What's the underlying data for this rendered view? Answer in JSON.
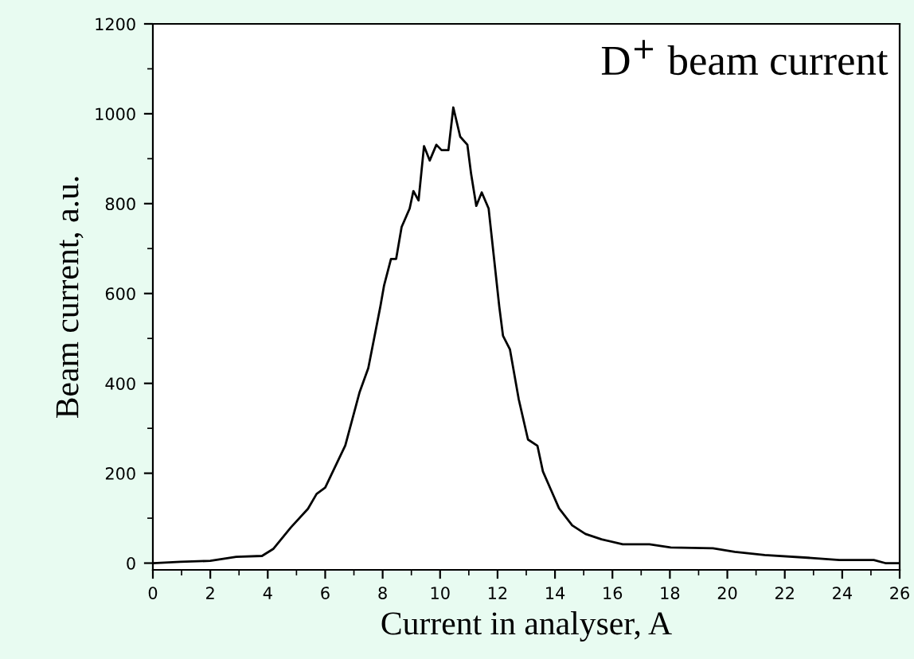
{
  "chart_data": {
    "type": "line",
    "title": "D$^{+}$ beam current",
    "xlabel": "Current in analyser, A",
    "ylabel": "Beam current, a.u.",
    "x": [
      0,
      0.96,
      2.0,
      2.9,
      3.8,
      4.2,
      4.8,
      5.4,
      5.7,
      6.0,
      6.7,
      7.2,
      7.5,
      7.7,
      7.92,
      8.05,
      8.29,
      8.47,
      8.66,
      8.94,
      9.07,
      9.25,
      9.44,
      9.64,
      9.87,
      10.05,
      10.29,
      10.46,
      10.7,
      10.95,
      11.08,
      11.26,
      11.45,
      11.69,
      12.06,
      12.19,
      12.43,
      12.74,
      13.06,
      13.39,
      13.58,
      13.86,
      14.14,
      14.6,
      15.06,
      15.62,
      16.36,
      17.29,
      18.03,
      19.5,
      20.26,
      21.3,
      22.8,
      23.9,
      25.1,
      25.5,
      26
    ],
    "values": [
      0,
      3,
      5,
      14,
      16,
      32,
      79,
      121,
      154,
      168,
      262,
      381,
      434,
      499,
      571,
      618,
      677,
      677,
      748,
      789,
      828,
      807,
      928,
      896,
      931,
      919,
      919,
      1014,
      949,
      931,
      866,
      795,
      825,
      789,
      571,
      506,
      476,
      364,
      275,
      261,
      204,
      163,
      122,
      84,
      65,
      53,
      42,
      42,
      35,
      33,
      25,
      18,
      12,
      7,
      7,
      0,
      0
    ],
    "color": "#000000",
    "xlim": [
      0,
      26
    ],
    "ylim": [
      -15,
      1200
    ],
    "xticks": [
      0,
      2,
      4,
      6,
      8,
      10,
      12,
      14,
      16,
      18,
      20,
      22,
      24,
      26
    ],
    "yticks": [
      0,
      200,
      400,
      600,
      800,
      1000,
      1200
    ],
    "grid": false,
    "legend": false,
    "marker": "none",
    "line_style": "solid"
  }
}
